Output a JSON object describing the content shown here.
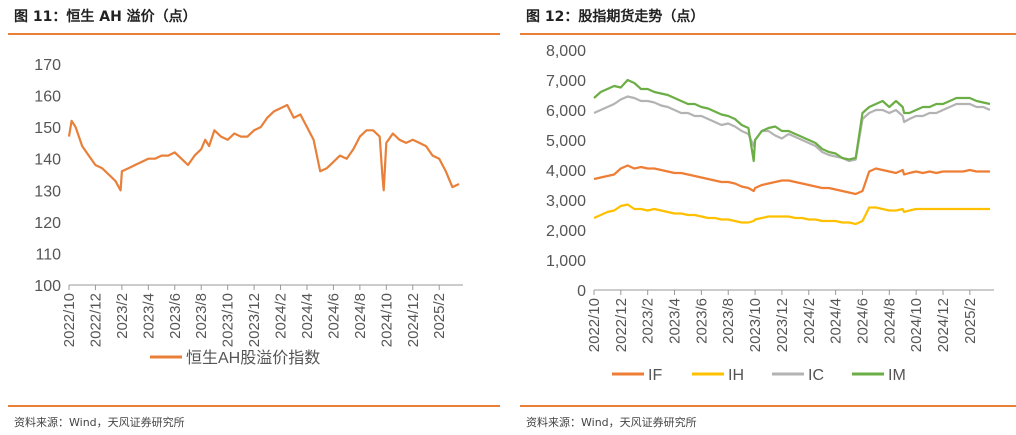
{
  "left": {
    "title": "图 11：恒生 AH 溢价（点）",
    "source": "资料来源：Wind，天风证券研究所"
  },
  "right": {
    "title": "图 12：股指期货走势（点）",
    "source": "资料来源：Wind，天风证券研究所"
  },
  "colors": {
    "accent": "#e8803a",
    "IF": "#ee7d35",
    "IH": "#ffc000",
    "IC": "#b3b3b3",
    "IM": "#6cae46"
  },
  "chart_data": [
    {
      "type": "line",
      "ylim": [
        100,
        170
      ],
      "yticks": [
        "100",
        "110",
        "120",
        "130",
        "140",
        "150",
        "160",
        "170"
      ],
      "xticks": [
        "2022/10",
        "2022/12",
        "2023/2",
        "2023/4",
        "2023/6",
        "2023/8",
        "2023/10",
        "2023/12",
        "2024/2",
        "2024/4",
        "2024/6",
        "2024/8",
        "2024/10",
        "2024/12",
        "2025/2"
      ],
      "x": [
        0,
        0.2,
        0.5,
        1,
        1.5,
        2,
        2.5,
        3,
        3.5,
        3.9,
        4,
        4.5,
        5,
        5.5,
        6,
        6.5,
        7,
        7.5,
        8,
        8.5,
        9,
        9.5,
        10,
        10.3,
        10.6,
        11,
        11.5,
        12,
        12.5,
        13,
        13.5,
        14,
        14.5,
        15,
        15.5,
        16,
        16.5,
        17,
        17.5,
        18,
        18.5,
        19,
        19.5,
        20,
        20.5,
        21,
        21.5,
        22,
        22.5,
        23,
        23.5,
        23.7,
        23.8,
        24,
        24.5,
        25,
        25.5,
        26,
        26.5,
        27,
        27.5,
        28,
        28.5,
        29,
        29.5
      ],
      "series": [
        {
          "name": "恒生AH股溢价指数",
          "values": [
            147,
            152,
            150,
            144,
            141,
            138,
            137,
            135,
            133,
            130,
            136,
            137,
            138,
            139,
            140,
            140,
            141,
            141,
            142,
            140,
            138,
            141,
            143,
            146,
            144,
            149,
            147,
            146,
            148,
            147,
            147,
            149,
            150,
            153,
            155,
            156,
            157,
            153,
            154,
            150,
            146,
            136,
            137,
            139,
            141,
            140,
            143,
            147,
            149,
            149,
            147,
            135,
            130,
            145,
            148,
            146,
            145,
            146,
            145,
            144,
            141,
            140,
            136,
            131,
            132
          ]
        }
      ]
    },
    {
      "type": "line",
      "ylim": [
        0,
        8000
      ],
      "yticks": [
        "0",
        "1,000",
        "2,000",
        "3,000",
        "4,000",
        "5,000",
        "6,000",
        "7,000",
        "8,000"
      ],
      "xticks": [
        "2022/10",
        "2022/12",
        "2023/2",
        "2023/4",
        "2023/6",
        "2023/8",
        "2023/10",
        "2023/12",
        "2024/2",
        "2024/4",
        "2024/6",
        "2024/8",
        "2024/10",
        "2024/12",
        "2025/2"
      ],
      "x": [
        0,
        0.5,
        1,
        1.5,
        2,
        2.5,
        3,
        3.5,
        4,
        4.5,
        5,
        5.5,
        6,
        6.5,
        7,
        7.5,
        8,
        8.5,
        9,
        9.5,
        10,
        10.5,
        11,
        11.5,
        11.9,
        12,
        12.5,
        13,
        13.5,
        14,
        14.5,
        15,
        15.5,
        16,
        16.5,
        17,
        17.5,
        18,
        18.5,
        19,
        19.5,
        20,
        20.5,
        21,
        21.5,
        22,
        22.5,
        23,
        23.1,
        23.5,
        24,
        24.5,
        25,
        25.5,
        26,
        26.5,
        27,
        27.5,
        28,
        28.5,
        29,
        29.5
      ],
      "series": [
        {
          "name": "IF",
          "values": [
            3700,
            3750,
            3800,
            3850,
            4050,
            4150,
            4050,
            4100,
            4050,
            4050,
            4000,
            3950,
            3900,
            3900,
            3850,
            3800,
            3750,
            3700,
            3650,
            3600,
            3600,
            3550,
            3450,
            3400,
            3300,
            3400,
            3500,
            3550,
            3600,
            3650,
            3650,
            3600,
            3550,
            3500,
            3450,
            3400,
            3400,
            3350,
            3300,
            3250,
            3200,
            3300,
            3950,
            4050,
            4000,
            3950,
            3900,
            4000,
            3850,
            3900,
            3950,
            3900,
            3950,
            3900,
            3950,
            3950,
            3950,
            3950,
            4000,
            3950,
            3950,
            3950
          ]
        },
        {
          "name": "IH",
          "values": [
            2400,
            2500,
            2600,
            2650,
            2800,
            2850,
            2700,
            2700,
            2650,
            2700,
            2650,
            2600,
            2550,
            2550,
            2500,
            2500,
            2450,
            2400,
            2400,
            2350,
            2350,
            2300,
            2250,
            2250,
            2300,
            2350,
            2400,
            2450,
            2450,
            2450,
            2450,
            2400,
            2400,
            2350,
            2350,
            2300,
            2300,
            2300,
            2250,
            2250,
            2200,
            2300,
            2750,
            2750,
            2700,
            2650,
            2650,
            2700,
            2600,
            2650,
            2700,
            2700,
            2700,
            2700,
            2700,
            2700,
            2700,
            2700,
            2700,
            2700,
            2700,
            2700
          ]
        },
        {
          "name": "IC",
          "values": [
            5900,
            6000,
            6100,
            6200,
            6350,
            6450,
            6400,
            6300,
            6300,
            6250,
            6150,
            6100,
            6000,
            5900,
            5900,
            5800,
            5800,
            5700,
            5600,
            5500,
            5550,
            5450,
            5300,
            5200,
            4800,
            5000,
            5300,
            5300,
            5150,
            5050,
            5200,
            5100,
            5000,
            4900,
            4800,
            4600,
            4500,
            4450,
            4400,
            4300,
            4350,
            5700,
            5900,
            6000,
            6000,
            5900,
            6000,
            5800,
            5600,
            5700,
            5800,
            5800,
            5900,
            5900,
            6000,
            6100,
            6200,
            6200,
            6200,
            6100,
            6100,
            6000
          ]
        },
        {
          "name": "IM",
          "values": [
            6400,
            6600,
            6700,
            6800,
            6750,
            7000,
            6900,
            6700,
            6700,
            6600,
            6550,
            6500,
            6400,
            6300,
            6200,
            6200,
            6100,
            6050,
            5950,
            5850,
            5800,
            5700,
            5500,
            5400,
            4300,
            5000,
            5300,
            5400,
            5450,
            5300,
            5300,
            5200,
            5100,
            5000,
            4900,
            4700,
            4600,
            4550,
            4400,
            4350,
            4400,
            5900,
            6100,
            6200,
            6300,
            6100,
            6300,
            6100,
            5900,
            5900,
            6000,
            6100,
            6100,
            6200,
            6200,
            6300,
            6400,
            6400,
            6400,
            6300,
            6250,
            6200
          ]
        }
      ]
    }
  ]
}
